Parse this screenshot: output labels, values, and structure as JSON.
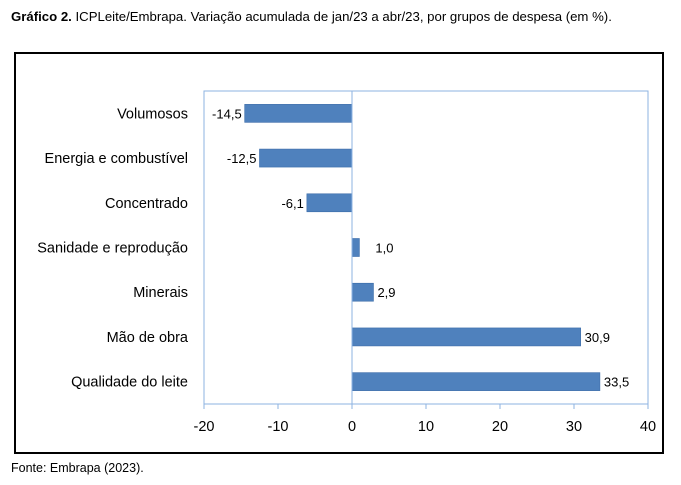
{
  "caption": {
    "label": "Gráfico 2.",
    "text": " ICPLeite/Embrapa. Variação acumulada de jan/23 a abr/23, por grupos de despesa (em %)."
  },
  "source": "Fonte: Embrapa (2023).",
  "colors": {
    "bar": "#4F81BD",
    "bar_stroke": "#3A6BA8",
    "plot_border": "#8DB3E2"
  },
  "chart_data": {
    "type": "bar",
    "orientation": "horizontal",
    "categories": [
      "Volumosos",
      "Energia e combustível",
      "Concentrado",
      "Sanidade e reprodução",
      "Minerais",
      "Mão de obra",
      "Qualidade do leite"
    ],
    "values": [
      -14.5,
      -12.5,
      -6.1,
      1.0,
      2.9,
      30.9,
      33.5
    ],
    "value_labels": [
      "-14,5",
      "-12,5",
      "-6,1",
      "1,0",
      "2,9",
      "30,9",
      "33,5"
    ],
    "xlim": [
      -20,
      40
    ],
    "xticks": [
      -20,
      -10,
      0,
      10,
      20,
      30,
      40
    ],
    "xtick_labels": [
      "-20",
      "-10",
      "0",
      "10",
      "20",
      "30",
      "40"
    ],
    "grid": false,
    "title": "",
    "xlabel": "",
    "ylabel": ""
  }
}
